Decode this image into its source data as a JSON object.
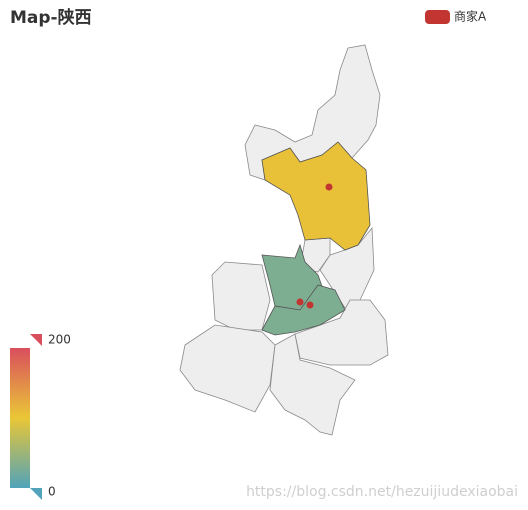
{
  "chart_data": {
    "type": "map",
    "title": "Map-陕西",
    "series": [
      {
        "name": "商家A",
        "color": "#c23531",
        "values": [
          105,
          30,
          30
        ]
      }
    ],
    "visual_range": [
      0,
      200
    ],
    "visual_colors": [
      "#50a3ba",
      "#eac736",
      "#d94e5d"
    ],
    "watermark": "https://blog.csdn.net/hezuijiudexiaobai"
  }
}
